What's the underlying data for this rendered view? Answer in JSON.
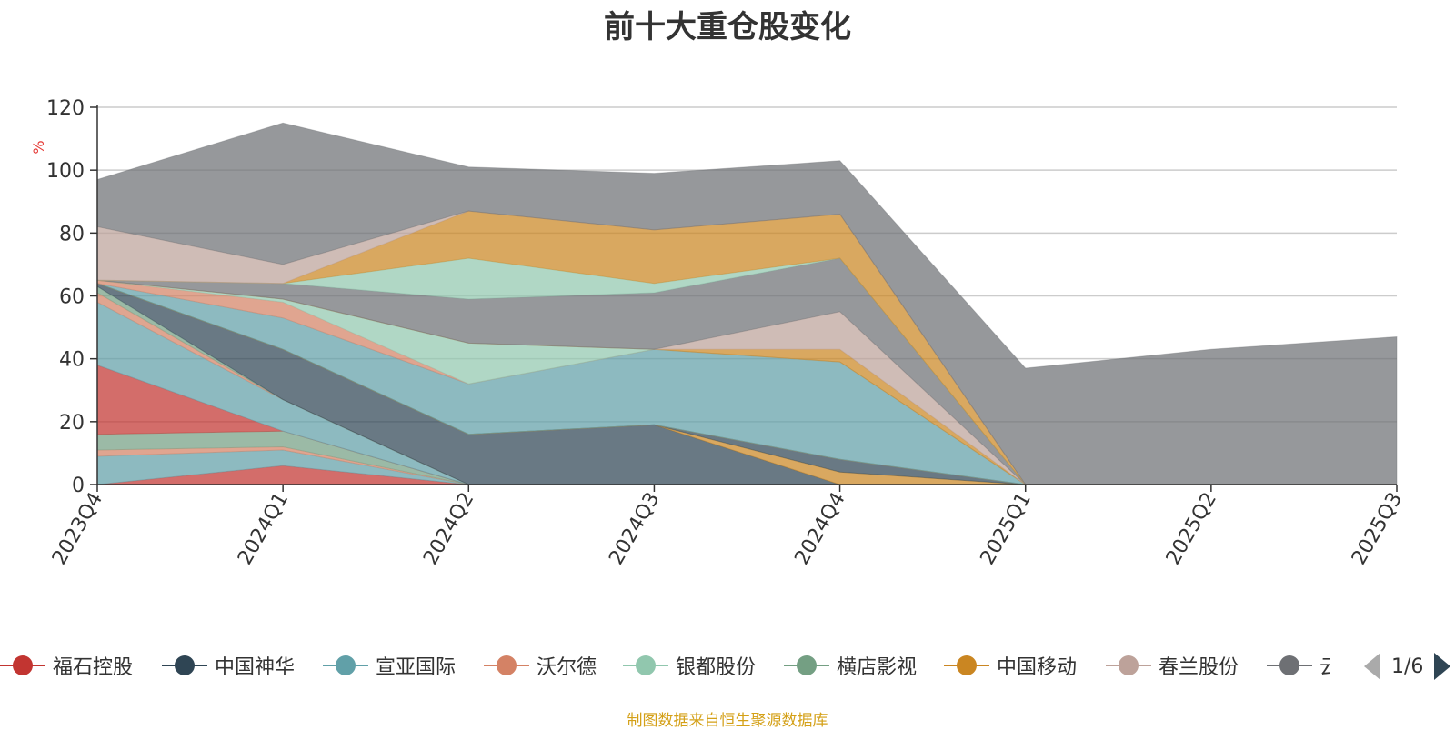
{
  "chart_data": {
    "type": "area",
    "title": "前十大重仓股变化",
    "ylabel": "%",
    "ylim": [
      0,
      120
    ],
    "yticks": [
      0,
      20,
      40,
      60,
      80,
      100,
      120
    ],
    "grid": true,
    "categories": [
      "2023Q4",
      "2024Q1",
      "2024Q2",
      "2024Q3",
      "2024Q4",
      "2025Q1",
      "2025Q2",
      "2025Q3"
    ],
    "stacked_bands": [
      {
        "name": "福石控股",
        "color": "#c23531",
        "values": [
          0,
          6,
          0,
          0,
          0,
          0,
          0,
          0
        ]
      },
      {
        "name": "宣亚国际",
        "color": "#61a0a8",
        "values": [
          9,
          5,
          0,
          0,
          0,
          0,
          0,
          0
        ]
      },
      {
        "name": "沃尔德",
        "color": "#d48265",
        "values": [
          2,
          1,
          0,
          0,
          0,
          0,
          0,
          0
        ]
      },
      {
        "name": "横店影视",
        "color": "#749f83",
        "values": [
          5,
          5,
          0,
          0,
          0,
          0,
          0,
          0
        ]
      },
      {
        "name": "福石控股",
        "color": "#c23531",
        "values": [
          22,
          0,
          0,
          0,
          0,
          0,
          0,
          0
        ]
      },
      {
        "name": "宣亚国际",
        "color": "#61a0a8",
        "values": [
          20,
          10,
          0,
          0,
          0,
          0,
          0,
          0
        ]
      },
      {
        "name": "沃尔德",
        "color": "#d48265",
        "values": [
          3,
          0,
          0,
          0,
          0,
          0,
          0,
          0
        ]
      },
      {
        "name": "横店影视",
        "color": "#749f83",
        "values": [
          2,
          0,
          0,
          0,
          0,
          0,
          0,
          0
        ]
      },
      {
        "name": "中国神华",
        "color": "#2f4554",
        "values": [
          1,
          16,
          16,
          19,
          0,
          0,
          0,
          0
        ]
      },
      {
        "name": "中国移动",
        "color": "#ca8622",
        "values": [
          0,
          0,
          0,
          0,
          4,
          0,
          0,
          0
        ]
      },
      {
        "name": "中国神华",
        "color": "#2f4554",
        "values": [
          0,
          0,
          0,
          0,
          4,
          0,
          0,
          0
        ]
      },
      {
        "name": "春兰股份",
        "color": "#bda29a",
        "values": [
          0,
          0,
          0,
          0,
          0,
          0,
          0,
          0
        ]
      },
      {
        "name": "云南白药",
        "color": "#6e7074",
        "values": [
          0,
          0,
          0,
          0,
          0,
          0,
          0,
          0
        ]
      },
      {
        "name": "中国移动",
        "color": "#ca8622",
        "values": [
          0,
          0,
          0,
          0,
          0,
          0,
          0,
          0
        ]
      },
      {
        "name": "宣亚国际",
        "color": "#61a0a8",
        "values": [
          0,
          10,
          16,
          24,
          31,
          0,
          0,
          0
        ]
      },
      {
        "name": "沃尔德",
        "color": "#d48265",
        "values": [
          1,
          5,
          0,
          0,
          0,
          0,
          0,
          0
        ]
      },
      {
        "name": "银都股份",
        "color": "#91c7ae",
        "values": [
          0,
          1,
          13,
          0,
          0,
          0,
          0,
          0
        ]
      },
      {
        "name": "中国移动",
        "color": "#ca8622",
        "values": [
          0,
          0,
          0,
          0,
          4,
          0,
          0,
          0
        ]
      },
      {
        "name": "春兰股份",
        "color": "#bda29a",
        "values": [
          0,
          0,
          0,
          0,
          12,
          0,
          0,
          0
        ]
      },
      {
        "name": "云南白药",
        "color": "#6e7074",
        "values": [
          0,
          5,
          14,
          18,
          17,
          0,
          0,
          0
        ]
      },
      {
        "name": "银都股份",
        "color": "#91c7ae",
        "values": [
          0,
          0,
          13,
          3,
          0,
          0,
          0,
          0
        ]
      },
      {
        "name": "中国移动",
        "color": "#ca8622",
        "values": [
          0,
          0,
          15,
          17,
          14,
          0,
          0,
          0
        ]
      },
      {
        "name": "春兰股份",
        "color": "#bda29a",
        "values": [
          17,
          6,
          0,
          0,
          0,
          0,
          0,
          0
        ]
      },
      {
        "name": "云南白药",
        "color": "#6e7074",
        "values": [
          15,
          45,
          14,
          18,
          17,
          37,
          43,
          47
        ]
      }
    ],
    "legend": [
      {
        "name": "福石控股",
        "color": "#c23531"
      },
      {
        "name": "中国神华",
        "color": "#2f4554"
      },
      {
        "name": "宣亚国际",
        "color": "#61a0a8"
      },
      {
        "name": "沃尔德",
        "color": "#d48265"
      },
      {
        "name": "银都股份",
        "color": "#91c7ae"
      },
      {
        "name": "横店影视",
        "color": "#749f83"
      },
      {
        "name": "中国移动",
        "color": "#ca8622"
      },
      {
        "name": "春兰股份",
        "color": "#bda29a"
      },
      {
        "name": "云南白药",
        "color": "#6e7074"
      }
    ],
    "legend_position": "bottom"
  },
  "legend_page": "1/6",
  "source_note": "制图数据来自恒生聚源数据库"
}
